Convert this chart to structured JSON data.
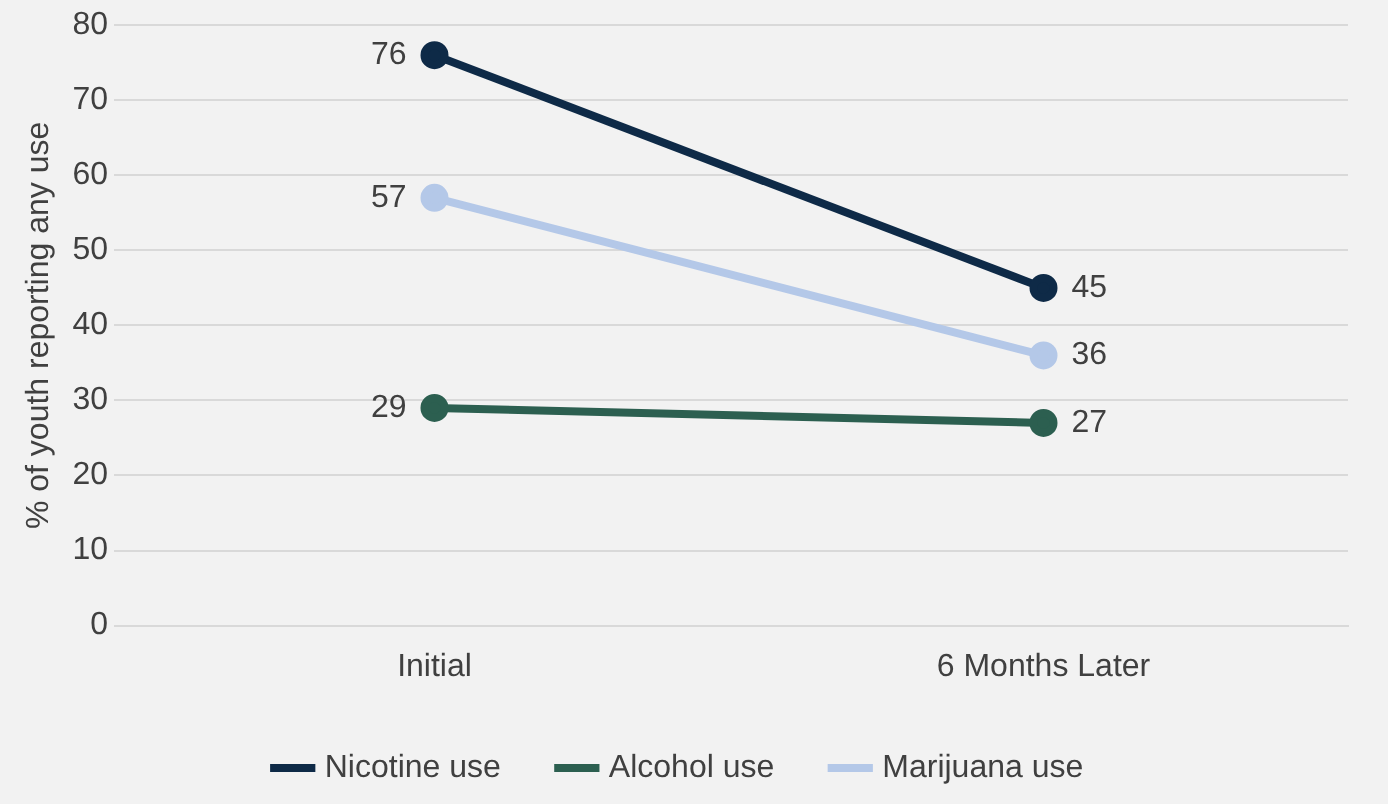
{
  "chart_data": {
    "type": "line",
    "ylabel": "% of youth reporting any use",
    "categories": [
      "Initial",
      "6 Months Later"
    ],
    "series": [
      {
        "name": "Nicotine use",
        "color": "#0e2a47",
        "values": [
          76,
          45
        ]
      },
      {
        "name": "Alcohol use",
        "color": "#2c5f50",
        "values": [
          29,
          27
        ]
      },
      {
        "name": "Marijuana use",
        "color": "#b4c8e8",
        "values": [
          57,
          36
        ]
      }
    ],
    "ylim": [
      0,
      80
    ],
    "yticks": [
      0,
      10,
      20,
      30,
      40,
      50,
      60,
      70,
      80
    ],
    "grid": "y",
    "legend": "bottom",
    "marker": "circle",
    "line_style": "solid",
    "data_labels": true
  }
}
